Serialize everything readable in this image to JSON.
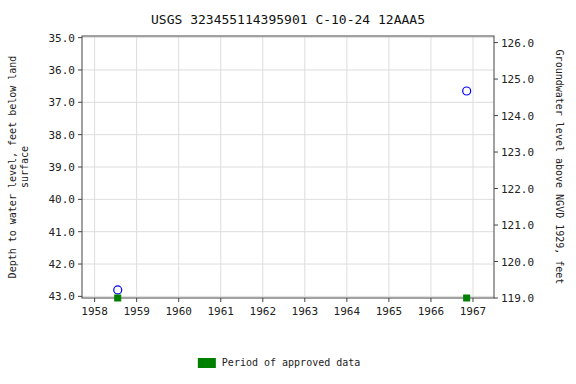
{
  "chart_data": {
    "type": "scatter",
    "title": "USGS 323455114395901 C-10-24 12AAA5",
    "x": [
      1958.55,
      1966.85
    ],
    "series": [
      {
        "values": [
          42.8,
          36.65
        ],
        "color": "blue",
        "marker": "circle"
      },
      {
        "name": "Period of approved data",
        "values": [
          43.05,
          43.05
        ],
        "color": "#008000",
        "marker": "square"
      }
    ],
    "xlim": [
      1957.7,
      1967.5
    ],
    "xticks": [
      1958,
      1959,
      1960,
      1961,
      1962,
      1963,
      1964,
      1965,
      1966,
      1967
    ],
    "ylim": [
      43.05,
      34.95
    ],
    "yticks": [
      {
        "value": 35.0,
        "label": "35.0"
      },
      {
        "value": 36.0,
        "label": "36.0"
      },
      {
        "value": 37.0,
        "label": "37.0"
      },
      {
        "value": 38.0,
        "label": "38.0"
      },
      {
        "value": 39.0,
        "label": "39.0"
      },
      {
        "value": 40.0,
        "label": "40.0"
      },
      {
        "value": 41.0,
        "label": "41.0"
      },
      {
        "value": 42.0,
        "label": "42.0"
      },
      {
        "value": 43.0,
        "label": "43.0"
      }
    ],
    "y2lim": [
      119.0,
      126.18
    ],
    "y2ticks": [
      {
        "value": 119.0,
        "label": "119.0"
      },
      {
        "value": 120.0,
        "label": "120.0"
      },
      {
        "value": 121.0,
        "label": "121.0"
      },
      {
        "value": 122.0,
        "label": "122.0"
      },
      {
        "value": 123.0,
        "label": "123.0"
      },
      {
        "value": 124.0,
        "label": "124.0"
      },
      {
        "value": 125.0,
        "label": "125.0"
      },
      {
        "value": 126.0,
        "label": "126.0"
      }
    ],
    "ylabel": "Depth to water level, feet below land\nsurface",
    "y2label": "Groundwater level above NGVD 1929, feet",
    "grid": true,
    "legend": "bottom"
  }
}
